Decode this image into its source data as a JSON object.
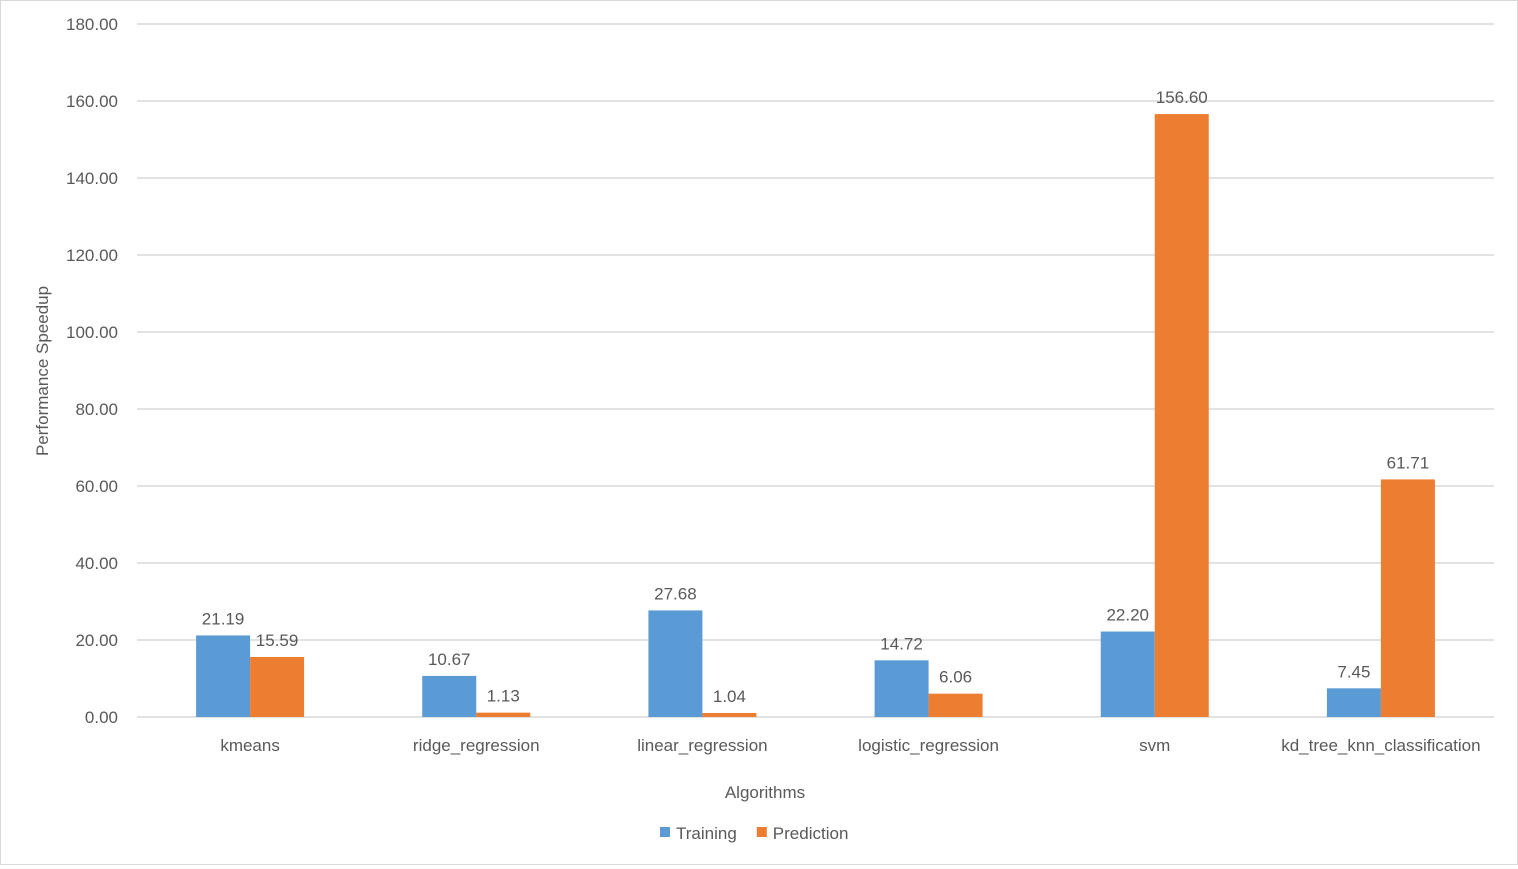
{
  "chart_data": {
    "type": "bar",
    "title": "",
    "xlabel": "Algorithms",
    "ylabel": "Performance Speedup",
    "ylim": [
      0,
      180
    ],
    "ytick_step": 20,
    "yticks": [
      "0.00",
      "20.00",
      "40.00",
      "60.00",
      "80.00",
      "100.00",
      "120.00",
      "140.00",
      "160.00",
      "180.00"
    ],
    "grid": true,
    "legend_position": "bottom",
    "categories": [
      "kmeans",
      "ridge_regression",
      "linear_regression",
      "logistic_regression",
      "svm",
      "kd_tree_knn_classification"
    ],
    "series": [
      {
        "name": "Training",
        "color": "#5B9BD5",
        "values": [
          21.19,
          10.67,
          27.68,
          14.72,
          22.2,
          7.45
        ],
        "labels": [
          "21.19",
          "10.67",
          "27.68",
          "14.72",
          "22.20",
          "7.45"
        ]
      },
      {
        "name": "Prediction",
        "color": "#ED7D31",
        "values": [
          15.59,
          1.13,
          1.04,
          6.06,
          156.6,
          61.71
        ],
        "labels": [
          "15.59",
          "1.13",
          "1.04",
          "6.06",
          "156.60",
          "61.71"
        ]
      }
    ]
  }
}
